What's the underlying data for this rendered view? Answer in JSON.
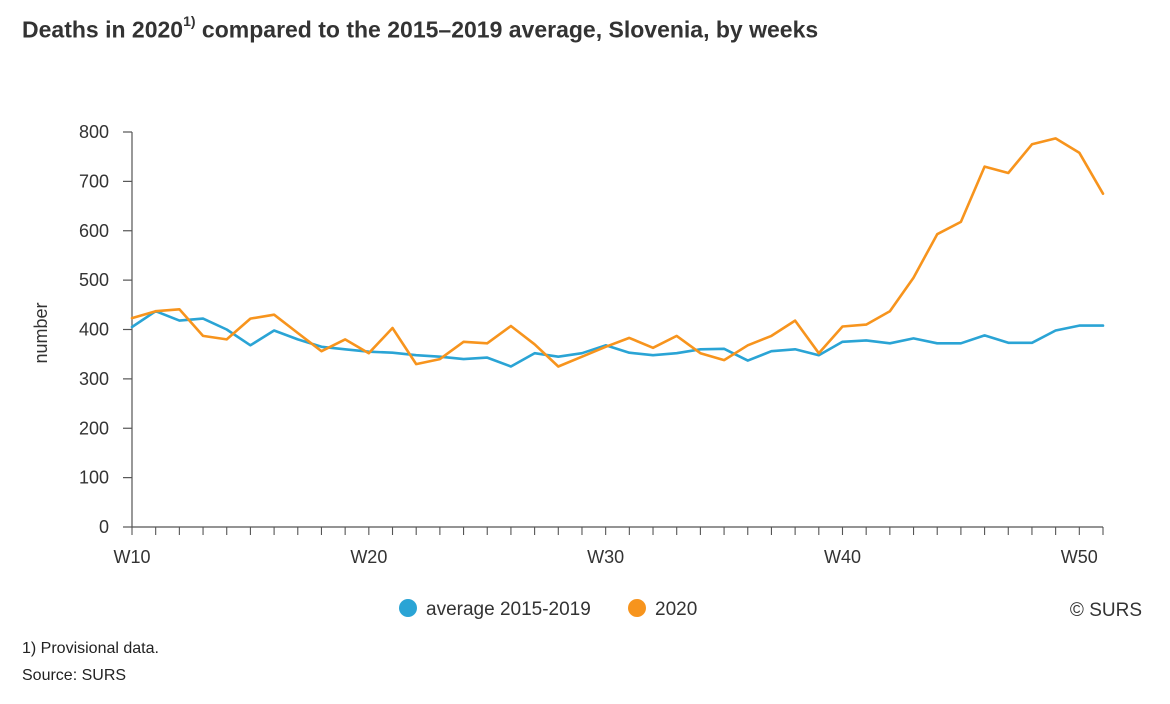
{
  "title": {
    "main": "Deaths in 2020",
    "sup": "1)",
    "rest": " compared to the 2015–2019 average, Slovenia, by weeks"
  },
  "footnotes": {
    "note": "1) Provisional data.",
    "source": "Source: SURS"
  },
  "copyright": "© SURS",
  "colors": {
    "average": "#2aa4d5",
    "y2020": "#f7941d",
    "axis": "#555555"
  },
  "chart_data": {
    "type": "line",
    "title": "Deaths in 2020 compared to the 2015–2019 average, Slovenia, by weeks",
    "xlabel": "",
    "ylabel": "number",
    "x": [
      "W10",
      "W11",
      "W12",
      "W13",
      "W14",
      "W15",
      "W16",
      "W17",
      "W18",
      "W19",
      "W20",
      "W21",
      "W22",
      "W23",
      "W24",
      "W25",
      "W26",
      "W27",
      "W28",
      "W29",
      "W30",
      "W31",
      "W32",
      "W33",
      "W34",
      "W35",
      "W36",
      "W37",
      "W38",
      "W39",
      "W40",
      "W41",
      "W42",
      "W43",
      "W44",
      "W45",
      "W46",
      "W47",
      "W48",
      "W49",
      "W50",
      "W51"
    ],
    "x_tick_labels": [
      "W10",
      "W20",
      "W30",
      "W40",
      "W50"
    ],
    "y_ticks": [
      0,
      100,
      200,
      300,
      400,
      500,
      600,
      700,
      800
    ],
    "ylim": [
      0,
      800
    ],
    "grid": false,
    "legend_position": "bottom",
    "series": [
      {
        "name": "average 2015-2019",
        "color_key": "average",
        "values": [
          405,
          437,
          418,
          422,
          400,
          368,
          398,
          380,
          365,
          360,
          355,
          353,
          348,
          345,
          340,
          343,
          325,
          352,
          345,
          352,
          368,
          353,
          348,
          352,
          360,
          361,
          337,
          356,
          360,
          348,
          375,
          378,
          372,
          382,
          372,
          372,
          388,
          373,
          373,
          398,
          408,
          408
        ]
      },
      {
        "name": "2020",
        "color_key": "y2020",
        "values": [
          423,
          437,
          441,
          387,
          380,
          422,
          430,
          393,
          356,
          380,
          352,
          403,
          330,
          340,
          375,
          372,
          407,
          370,
          325,
          345,
          365,
          383,
          363,
          387,
          352,
          338,
          368,
          387,
          418,
          352,
          406,
          410,
          437,
          505,
          593,
          618,
          730,
          717,
          775,
          787,
          758,
          675
        ]
      }
    ]
  }
}
